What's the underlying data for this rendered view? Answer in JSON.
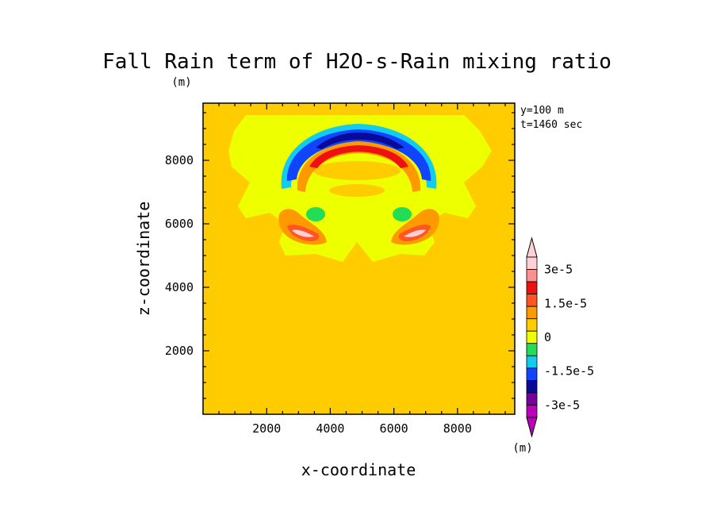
{
  "chart_data": {
    "type": "heatmap",
    "title": "Fall Rain term of H2O-s-Rain mixing ratio",
    "y_unit_label": "(m)",
    "xlabel": "x-coordinate",
    "ylabel": "z-coordinate",
    "annotations": [
      "y=100 m",
      "t=1460 sec"
    ],
    "xlim": [
      0,
      9800
    ],
    "ylim": [
      0,
      9800
    ],
    "x_ticks": [
      2000,
      4000,
      6000,
      8000
    ],
    "y_ticks": [
      2000,
      4000,
      6000,
      8000
    ],
    "background_level": 0,
    "colorbar": {
      "unit_label": "(m)",
      "tick_labels": [
        "3e-5",
        "1.5e-5",
        "0",
        "-1.5e-5",
        "-3e-5"
      ],
      "tick_values": [
        3e-05,
        1.5e-05,
        0,
        -1.5e-05,
        -3e-05
      ],
      "levels_top_to_bottom": [
        {
          "color": "#ffd0d8"
        },
        {
          "color": "#ff9090"
        },
        {
          "color": "#ee1111"
        },
        {
          "color": "#ff5522"
        },
        {
          "color": "#ff9900"
        },
        {
          "color": "#ffcc00"
        },
        {
          "color": "#eeff00"
        },
        {
          "color": "#22dd55"
        },
        {
          "color": "#11ccee"
        },
        {
          "color": "#1144ff"
        },
        {
          "color": "#0a0a99"
        },
        {
          "color": "#770099"
        },
        {
          "color": "#bb00bb"
        }
      ]
    },
    "features": [
      {
        "name": "upper negative arc",
        "center": [
          5000,
          7800
        ],
        "min": -2.5e-05
      },
      {
        "name": "positive arc",
        "center": [
          5000,
          7400
        ],
        "max": 2.2e-05
      },
      {
        "name": "left positive lobe",
        "center": [
          3200,
          5800
        ],
        "max": 3e-05
      },
      {
        "name": "right positive lobe",
        "center": [
          6800,
          5800
        ],
        "max": 3e-05
      },
      {
        "name": "left negative spot",
        "center": [
          3500,
          6300
        ],
        "min": -8e-06
      },
      {
        "name": "right negative spot",
        "center": [
          6300,
          6300
        ],
        "min": -8e-06
      }
    ]
  }
}
